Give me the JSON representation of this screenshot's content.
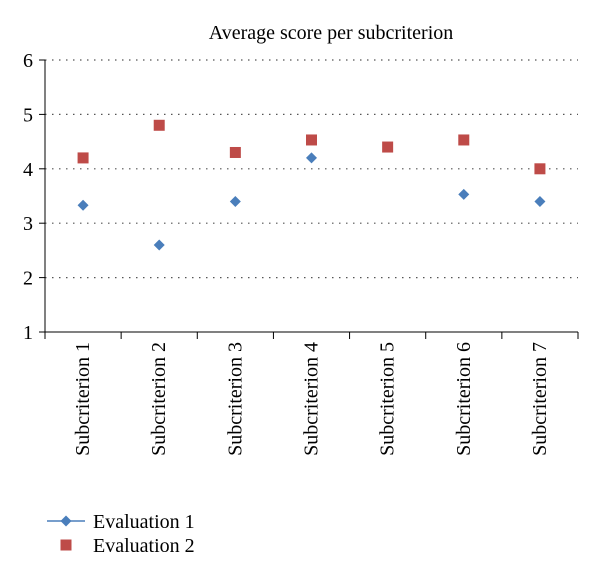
{
  "chart_data": {
    "type": "scatter",
    "title": "Average score per subcriterion",
    "xlabel": "",
    "ylabel": "",
    "categories": [
      "Subcriterion 1",
      "Subcriterion 2",
      "Subcriterion 3",
      "Subcriterion 4",
      "Subcriterion 5",
      "Subcriterion 6",
      "Subcriterion 7"
    ],
    "ylim": [
      1,
      6
    ],
    "yticks": [
      1,
      2,
      3,
      4,
      5,
      6
    ],
    "grid": "horizontal dotted",
    "legend_position": "bottom-left",
    "series": [
      {
        "name": "Evaluation 1",
        "marker": "diamond",
        "color": "#4a7ebb",
        "values": [
          3.33,
          2.6,
          3.4,
          4.2,
          null,
          3.53,
          3.4
        ]
      },
      {
        "name": "Evaluation 2",
        "marker": "square",
        "color": "#be4b48",
        "values": [
          4.2,
          4.8,
          4.3,
          4.53,
          4.4,
          4.53,
          4.0
        ]
      }
    ]
  }
}
